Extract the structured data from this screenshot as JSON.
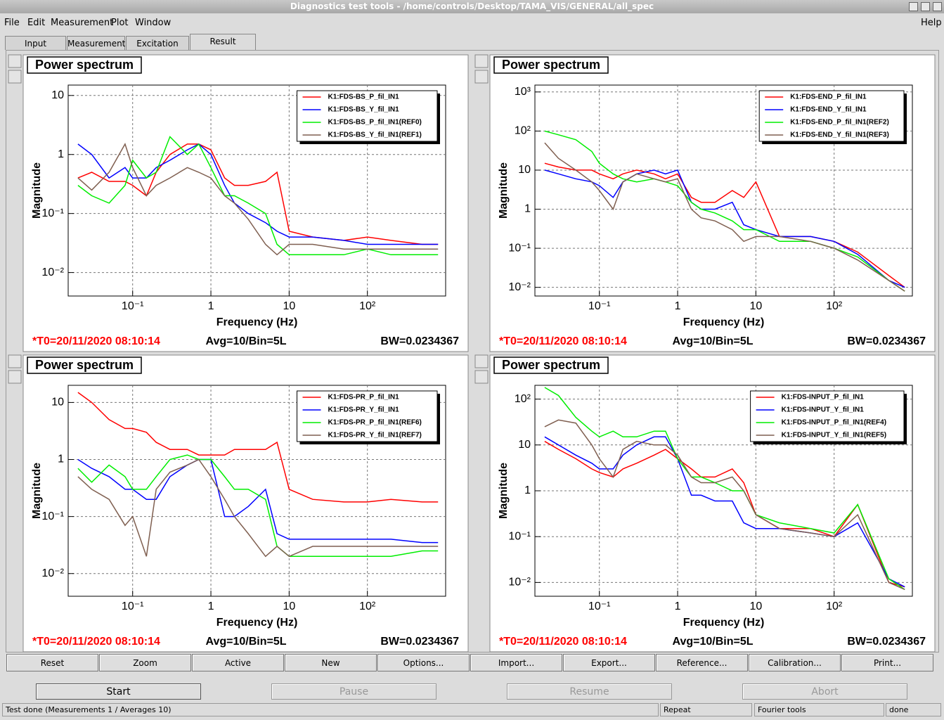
{
  "window": {
    "title": "Diagnostics test tools - /home/controls/Desktop/TAMA_VIS/GENERAL/all_spec",
    "menu": [
      "File",
      "Edit",
      "Measurement",
      "Plot",
      "Window"
    ],
    "help": "Help",
    "tabs": [
      "Input",
      "Measurement",
      "Excitation",
      "Result"
    ],
    "buttons": [
      "Reset",
      "Zoom",
      "Active",
      "New",
      "Options...",
      "Import...",
      "Export...",
      "Reference...",
      "Calibration...",
      "Print..."
    ],
    "controls": [
      "Start",
      "Pause",
      "Resume",
      "Abort"
    ],
    "status": [
      "Test done (Measurements 1 / Averages 10)",
      "Repeat",
      "Fourier tools",
      "done"
    ]
  },
  "chart_data": [
    {
      "type": "line",
      "title": "Power spectrum",
      "xlabel": "Frequency (Hz)",
      "ylabel": "Magnitude",
      "xscale": "log",
      "yscale": "log",
      "grid": true,
      "legend": "upper right",
      "xlim": [
        0.015,
        1000
      ],
      "ylim": [
        0.004,
        15
      ],
      "xticks": [
        {
          "value": 0.1,
          "label": "10⁻¹"
        },
        1,
        10,
        {
          "value": 100,
          "label": "10²"
        }
      ],
      "yticks": [
        {
          "value": 0.01,
          "label": "10⁻²"
        },
        {
          "value": 0.1,
          "label": "10⁻¹"
        },
        1,
        10
      ],
      "x": [
        0.02,
        0.03,
        0.05,
        0.08,
        0.1,
        0.15,
        0.2,
        0.3,
        0.5,
        0.7,
        1,
        1.5,
        2,
        3,
        5,
        7,
        10,
        20,
        50,
        100,
        200,
        500,
        800
      ],
      "series": [
        {
          "name": "K1:FDS-BS_P_fil_IN1",
          "color": "#ff0000",
          "values": [
            0.4,
            0.5,
            0.35,
            0.35,
            0.3,
            0.2,
            0.5,
            1,
            1.5,
            1.5,
            1.2,
            0.4,
            0.3,
            0.3,
            0.35,
            0.5,
            0.05,
            0.04,
            0.035,
            0.04,
            0.035,
            0.03,
            0.03
          ]
        },
        {
          "name": "K1:FDS-BS_Y_fil_IN1",
          "color": "#0000ff",
          "values": [
            1.5,
            1,
            0.4,
            0.6,
            0.4,
            0.4,
            0.6,
            0.8,
            1.2,
            1.5,
            1,
            0.3,
            0.15,
            0.1,
            0.07,
            0.05,
            0.04,
            0.04,
            0.035,
            0.03,
            0.03,
            0.03,
            0.03
          ]
        },
        {
          "name": "K1:FDS-BS_P_fil_IN1(REF0)",
          "color": "#00ee00",
          "values": [
            0.3,
            0.2,
            0.15,
            0.3,
            0.8,
            0.4,
            0.5,
            2,
            1,
            1.5,
            0.6,
            0.2,
            0.2,
            0.15,
            0.1,
            0.03,
            0.02,
            0.02,
            0.02,
            0.025,
            0.02,
            0.02,
            0.02
          ]
        },
        {
          "name": "K1:FDS-BS_Y_fil_IN1(REF1)",
          "color": "#7f5f50",
          "values": [
            0.4,
            0.25,
            0.5,
            1.5,
            0.6,
            0.2,
            0.3,
            0.4,
            0.6,
            0.5,
            0.4,
            0.2,
            0.15,
            0.08,
            0.03,
            0.02,
            0.03,
            0.03,
            0.025,
            0.025,
            0.025,
            0.025,
            0.025
          ]
        }
      ],
      "annotations": [
        "*T0=20/11/2020 08:10:14",
        "Avg=10/Bin=5L",
        "BW=0.0234367"
      ]
    },
    {
      "type": "line",
      "title": "Power spectrum",
      "xlabel": "Frequency (Hz)",
      "ylabel": "Magnitude",
      "xscale": "log",
      "yscale": "log",
      "grid": true,
      "legend": "upper right",
      "xlim": [
        0.015,
        1000
      ],
      "ylim": [
        0.006,
        1500
      ],
      "xticks": [
        {
          "value": 0.1,
          "label": "10⁻¹"
        },
        1,
        10,
        {
          "value": 100,
          "label": "10²"
        }
      ],
      "yticks": [
        {
          "value": 0.01,
          "label": "10⁻²"
        },
        {
          "value": 0.1,
          "label": "10⁻¹"
        },
        1,
        10,
        {
          "value": 100,
          "label": "10²"
        },
        {
          "value": 1000,
          "label": "10³"
        }
      ],
      "x": [
        0.02,
        0.03,
        0.05,
        0.08,
        0.1,
        0.15,
        0.2,
        0.3,
        0.5,
        0.7,
        1,
        1.5,
        2,
        3,
        5,
        7,
        10,
        20,
        50,
        100,
        200,
        500,
        800
      ],
      "series": [
        {
          "name": "K1:FDS-END_P_fil_IN1",
          "color": "#ff0000",
          "values": [
            15,
            12,
            10,
            10,
            8,
            6,
            8,
            10,
            8,
            6,
            8,
            2,
            1.5,
            1.5,
            3,
            2,
            5,
            0.2,
            0.2,
            0.15,
            0.08,
            0.02,
            0.01
          ]
        },
        {
          "name": "K1:FDS-END_Y_fil_IN1",
          "color": "#0000ff",
          "values": [
            10,
            8,
            6,
            5,
            4,
            2,
            5,
            8,
            10,
            8,
            10,
            1.5,
            1,
            1,
            1.5,
            0.4,
            0.3,
            0.2,
            0.2,
            0.15,
            0.07,
            0.015,
            0.01
          ]
        },
        {
          "name": "K1:FDS-END_P_fil_IN1(REF2)",
          "color": "#00ee00",
          "values": [
            100,
            80,
            60,
            30,
            15,
            8,
            6,
            5,
            6,
            5,
            4,
            1.5,
            1,
            0.8,
            0.5,
            0.3,
            0.3,
            0.15,
            0.15,
            0.1,
            0.06,
            0.015,
            0.008
          ]
        },
        {
          "name": "K1:FDS-END_Y_fil_IN1(REF3)",
          "color": "#7f5f50",
          "values": [
            50,
            20,
            10,
            5,
            3,
            1,
            5,
            8,
            6,
            5,
            6,
            1,
            0.6,
            0.5,
            0.3,
            0.15,
            0.2,
            0.2,
            0.15,
            0.1,
            0.05,
            0.015,
            0.008
          ]
        }
      ],
      "annotations": [
        "*T0=20/11/2020 08:10:14",
        "Avg=10/Bin=5L",
        "BW=0.0234367"
      ]
    },
    {
      "type": "line",
      "title": "Power spectrum",
      "xlabel": "Frequency (Hz)",
      "ylabel": "Magnitude",
      "xscale": "log",
      "yscale": "log",
      "grid": true,
      "legend": "upper right",
      "xlim": [
        0.015,
        1000
      ],
      "ylim": [
        0.004,
        20
      ],
      "xticks": [
        {
          "value": 0.1,
          "label": "10⁻¹"
        },
        1,
        10,
        {
          "value": 100,
          "label": "10²"
        }
      ],
      "yticks": [
        {
          "value": 0.01,
          "label": "10⁻²"
        },
        {
          "value": 0.1,
          "label": "10⁻¹"
        },
        1,
        10
      ],
      "x": [
        0.02,
        0.03,
        0.05,
        0.08,
        0.1,
        0.15,
        0.2,
        0.3,
        0.5,
        0.7,
        1,
        1.5,
        2,
        3,
        5,
        7,
        10,
        20,
        50,
        100,
        200,
        500,
        800
      ],
      "series": [
        {
          "name": "K1:FDS-PR_P_fil_IN1",
          "color": "#ff0000",
          "values": [
            15,
            10,
            5,
            3.5,
            3.5,
            3,
            2,
            1.5,
            1.5,
            1.2,
            1.2,
            1.2,
            1.5,
            1.5,
            1.5,
            2,
            0.3,
            0.2,
            0.18,
            0.18,
            0.2,
            0.18,
            0.18
          ]
        },
        {
          "name": "K1:FDS-PR_Y_fil_IN1",
          "color": "#0000ff",
          "values": [
            1,
            0.7,
            0.5,
            0.3,
            0.3,
            0.2,
            0.2,
            0.5,
            0.8,
            1,
            1,
            0.1,
            0.1,
            0.15,
            0.3,
            0.05,
            0.04,
            0.04,
            0.04,
            0.04,
            0.04,
            0.035,
            0.035
          ]
        },
        {
          "name": "K1:FDS-PR_P_fil_IN1(REF6)",
          "color": "#00ee00",
          "values": [
            0.7,
            0.4,
            0.8,
            0.5,
            0.3,
            0.3,
            0.5,
            1,
            1.2,
            1,
            1,
            0.5,
            0.3,
            0.3,
            0.2,
            0.03,
            0.02,
            0.02,
            0.02,
            0.02,
            0.02,
            0.025,
            0.025
          ]
        },
        {
          "name": "K1:FDS-PR_Y_fil_IN1(REF7)",
          "color": "#7f5f50",
          "values": [
            0.5,
            0.3,
            0.2,
            0.07,
            0.1,
            0.02,
            0.3,
            0.6,
            0.8,
            1,
            0.5,
            0.2,
            0.1,
            0.05,
            0.02,
            0.03,
            0.02,
            0.03,
            0.03,
            0.03,
            0.03,
            0.03,
            0.03
          ]
        }
      ],
      "annotations": [
        "*T0=20/11/2020 08:10:14",
        "Avg=10/Bin=5L",
        "BW=0.0234367"
      ]
    },
    {
      "type": "line",
      "title": "Power spectrum",
      "xlabel": "Frequency (Hz)",
      "ylabel": "Magnitude",
      "xscale": "log",
      "yscale": "log",
      "grid": true,
      "legend": "upper right",
      "xlim": [
        0.015,
        1000
      ],
      "ylim": [
        0.005,
        200
      ],
      "xticks": [
        {
          "value": 0.1,
          "label": "10⁻¹"
        },
        1,
        10,
        {
          "value": 100,
          "label": "10²"
        }
      ],
      "yticks": [
        {
          "value": 0.01,
          "label": "10⁻²"
        },
        {
          "value": 0.1,
          "label": "10⁻¹"
        },
        1,
        10,
        {
          "value": 100,
          "label": "10²"
        }
      ],
      "x": [
        0.02,
        0.03,
        0.05,
        0.08,
        0.1,
        0.15,
        0.2,
        0.3,
        0.5,
        0.7,
        1,
        1.5,
        2,
        3,
        5,
        7,
        10,
        20,
        50,
        100,
        200,
        500,
        800
      ],
      "series": [
        {
          "name": "K1:FDS-INPUT_P_fil_IN1",
          "color": "#ff0000",
          "values": [
            12,
            8,
            5,
            3,
            2.5,
            2,
            3,
            4,
            6,
            8,
            5,
            3,
            2,
            2,
            3,
            1.5,
            0.3,
            0.15,
            0.15,
            0.1,
            0.5,
            0.01,
            0.008
          ]
        },
        {
          "name": "K1:FDS-INPUT_Y_fil_IN1",
          "color": "#0000ff",
          "values": [
            15,
            10,
            6,
            4,
            3,
            3,
            6,
            10,
            15,
            15,
            5,
            0.8,
            0.8,
            0.6,
            0.6,
            0.2,
            0.15,
            0.15,
            0.12,
            0.1,
            0.2,
            0.012,
            0.008
          ]
        },
        {
          "name": "K1:FDS-INPUT_P_fil_IN1(REF4)",
          "color": "#00ee00",
          "values": [
            180,
            120,
            40,
            20,
            15,
            20,
            15,
            15,
            20,
            20,
            5,
            2,
            2,
            1.5,
            1,
            1,
            0.3,
            0.2,
            0.15,
            0.12,
            0.5,
            0.012,
            0.007
          ]
        },
        {
          "name": "K1:FDS-INPUT_Y_fil_IN1(REF5)",
          "color": "#7f5f50",
          "values": [
            25,
            35,
            30,
            10,
            5,
            2,
            8,
            12,
            10,
            10,
            6,
            2,
            1.5,
            1.5,
            2,
            1,
            0.3,
            0.15,
            0.12,
            0.1,
            0.3,
            0.01,
            0.007
          ]
        }
      ],
      "annotations": [
        "*T0=20/11/2020 08:10:14",
        "Avg=10/Bin=5L",
        "BW=0.0234367"
      ]
    }
  ]
}
